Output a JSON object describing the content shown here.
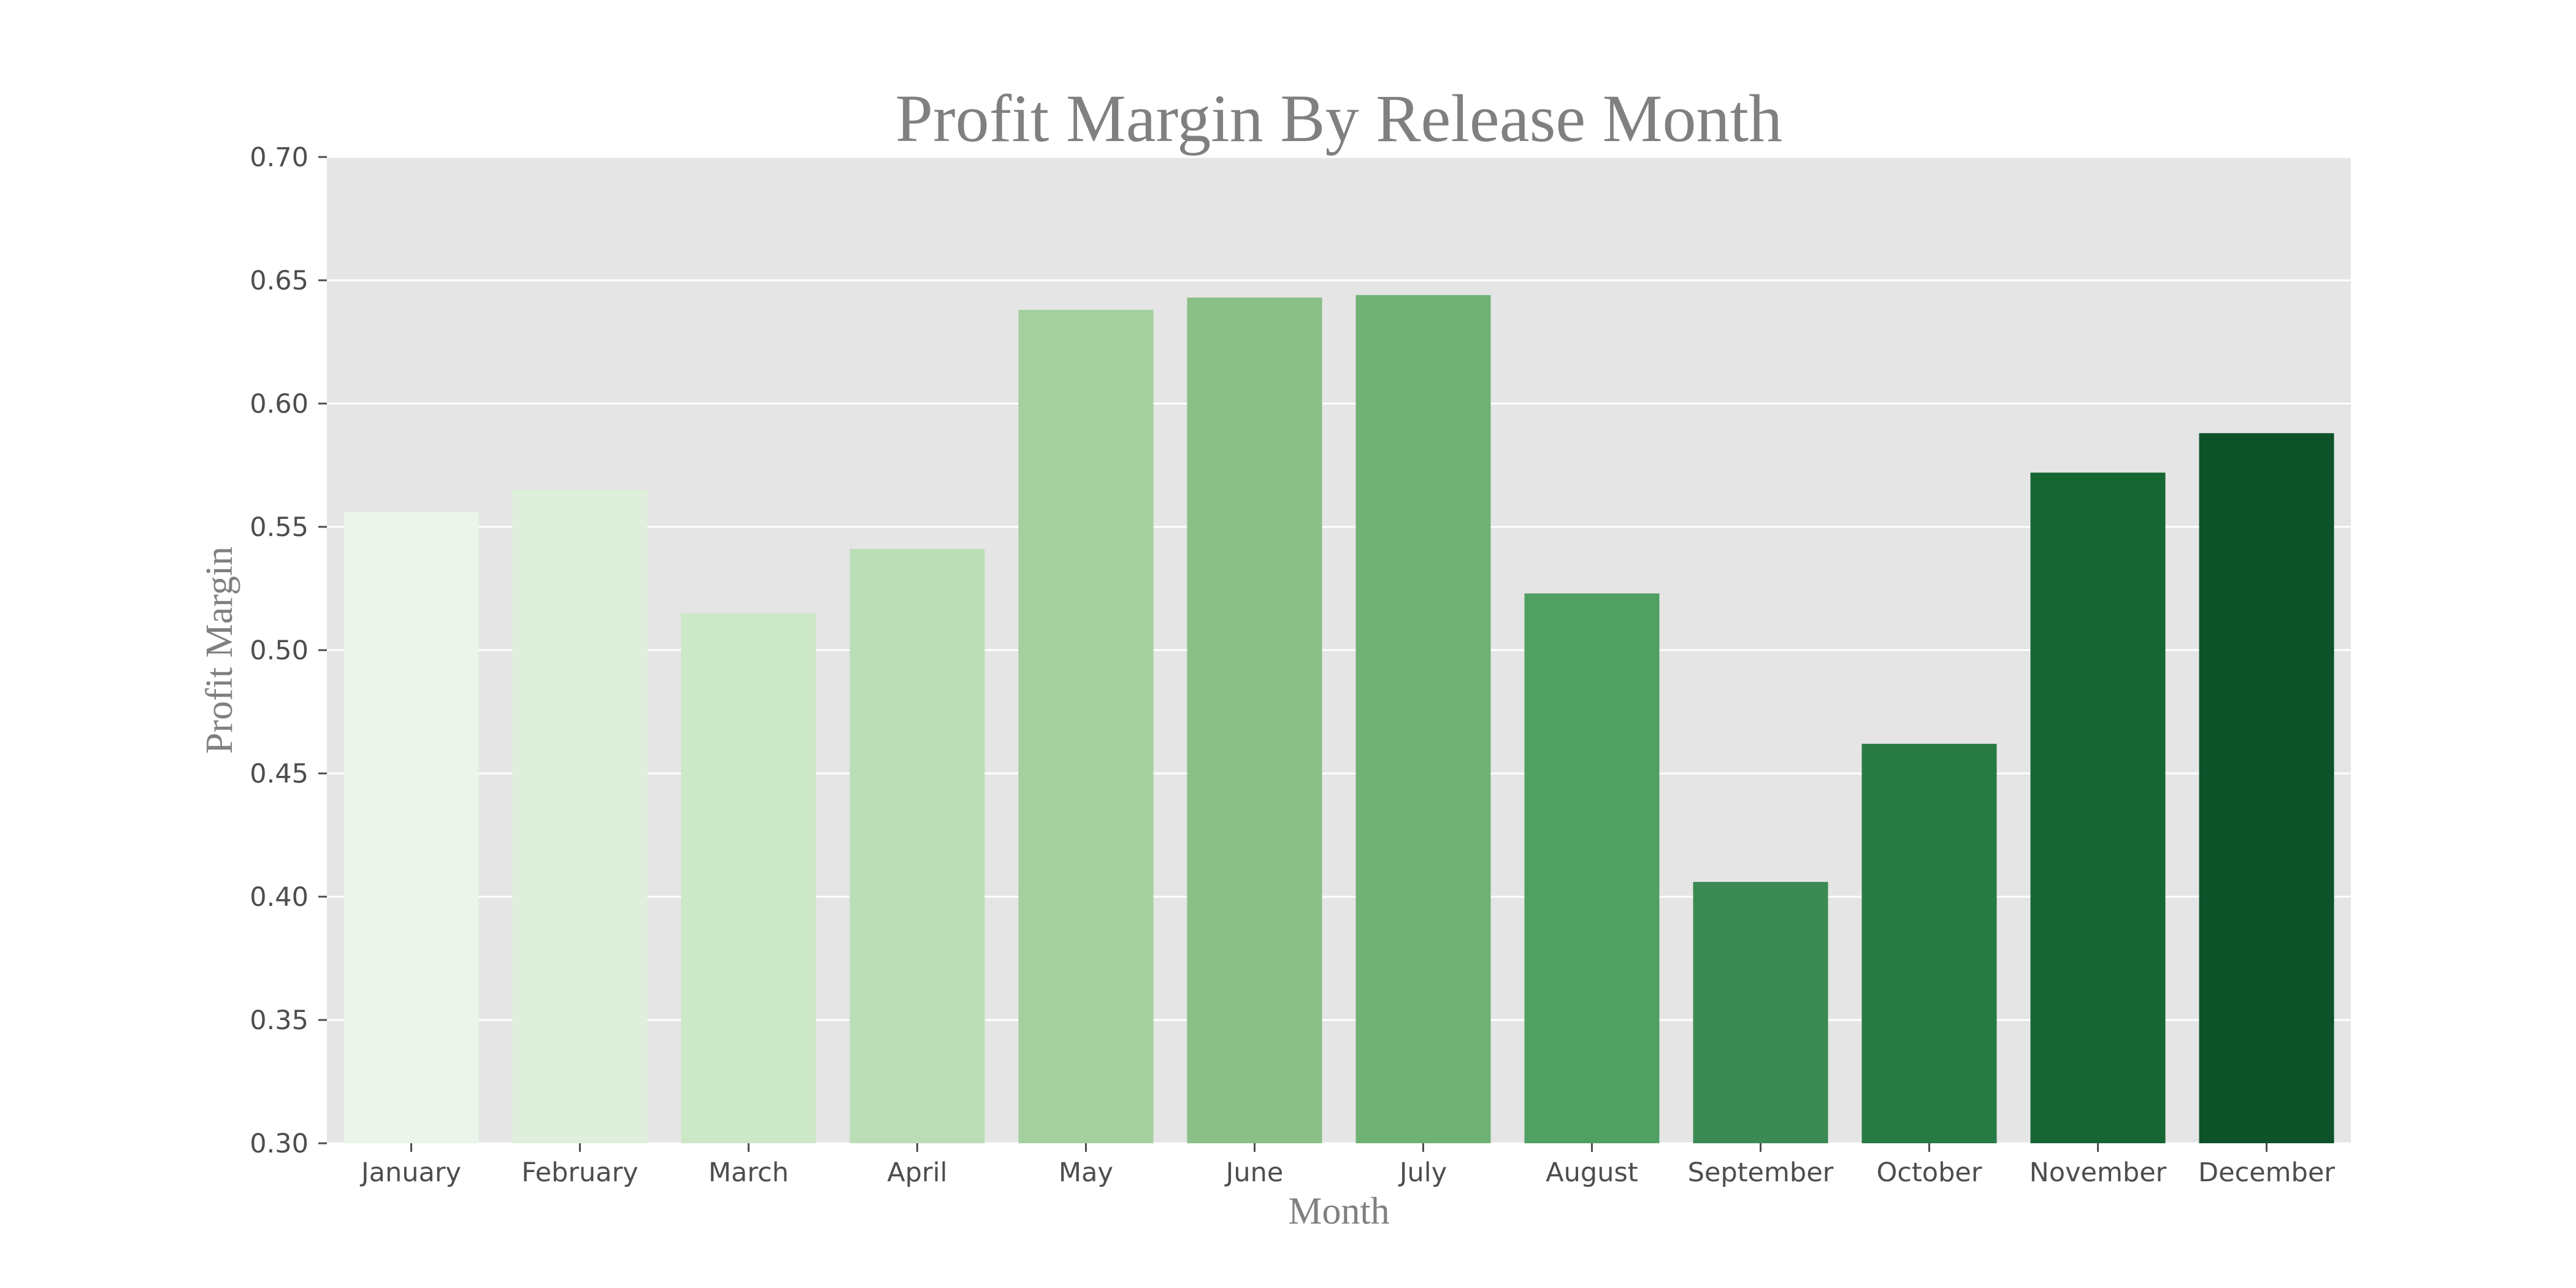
{
  "chart_data": {
    "type": "bar",
    "title": "Profit Margin By Release Month",
    "xlabel": "Month",
    "ylabel": "Profit Margin",
    "categories": [
      "January",
      "February",
      "March",
      "April",
      "May",
      "June",
      "July",
      "August",
      "September",
      "October",
      "November",
      "December"
    ],
    "values": [
      0.556,
      0.565,
      0.515,
      0.541,
      0.638,
      0.643,
      0.644,
      0.523,
      0.406,
      0.462,
      0.572,
      0.588
    ],
    "colors": [
      "#ebf5ea",
      "#deefdb",
      "#cce8c7",
      "#bbdeb6",
      "#a3d09e",
      "#8abf87",
      "#6fb174",
      "#51a063",
      "#3b8a54",
      "#287a44",
      "#166634",
      "#0e522a"
    ],
    "ylim": [
      0.3,
      0.7
    ],
    "yticks": [
      "0.30",
      "0.35",
      "0.40",
      "0.45",
      "0.50",
      "0.55",
      "0.60",
      "0.65",
      "0.70"
    ],
    "grid": true,
    "background": "#e5e5e5",
    "gridColor": "#ffffff",
    "textColor": "#808080",
    "tickColor": "#4d4d4d"
  }
}
